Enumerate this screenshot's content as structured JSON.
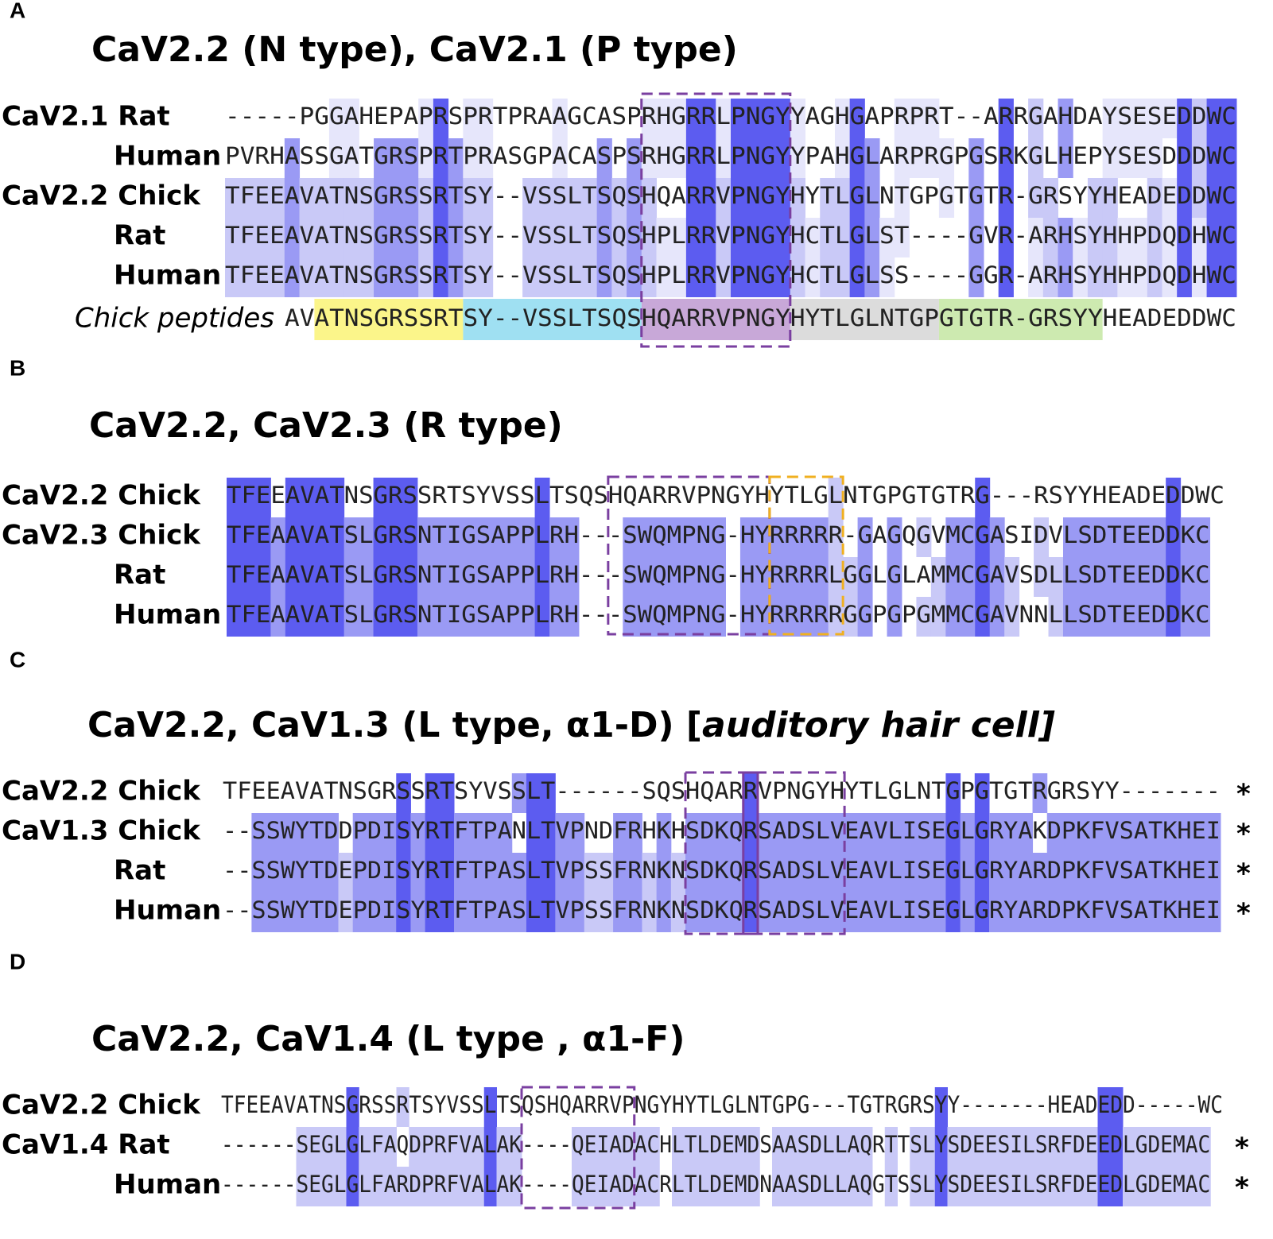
{
  "panels": [
    {
      "letter": "A",
      "title": "CaV2.2 (N type), CaV2.1 (P type)",
      "rows": [
        {
          "label": "CaV2.1 Rat",
          "sequence": "-----PGGAHEPAPRSPRTPRAAGCASPRHGRRLPNGYYAGHGAPRPRT--ARRGAHDAYSESEDDWC"
        },
        {
          "label": "Human",
          "sequence": "PVRHASSGATGRSPRTPRASGPACASPSRHGRRLPNGYYPAHGLARPRGPGSRKGLHEPYSESDDDWC"
        },
        {
          "label": "CaV2.2 Chick",
          "sequence": "TFEEAVATNSGRSSRTSY--VSSLTSQSHQARRVPNGYHYTLGLNTGPGTGTR-GRSYYHEADEDDWC"
        },
        {
          "label": "Rat",
          "sequence": "TFEEAVATNSGRSSRTSY--VSSLTSQSHPLRRVPNGYHCTLGLST----GVR-ARHSYHHPDQDHWC"
        },
        {
          "label": "Human",
          "sequence": "TFEEAVATNSGRSSRTSY--VSSLTSQSHPLRRVPNGYHCTLGLSS----GGR-ARHSYHHPDQDHWC"
        }
      ],
      "peptides": {
        "label": "Chick peptides",
        "segments": [
          {
            "text": "AV"
          },
          {
            "text": "ATNSGRSSRT",
            "color": "#fbf58a"
          },
          {
            "text": "SY--VSSLTSQS",
            "color": "#9fe0f2"
          },
          {
            "text": "HQARRVPNGY",
            "color": "#c8a8d8"
          },
          {
            "text": "HYTLGLNTGP",
            "color": "#dcdcdc"
          },
          {
            "text": "GTGTR-GRSYY",
            "color": "#cdeab0"
          },
          {
            "text": "HEADEDDWC"
          }
        ]
      }
    },
    {
      "letter": "B",
      "title": "CaV2.2, CaV2.3 (R type)",
      "rows": [
        {
          "label": "CaV2.2 Chick",
          "sequence": "TFEEAVATNSGRSSRTSYVSSLTSQSHQARRVPNGYHYTLGLNTGPGTGTRG---RSYYHEADEDDWC"
        },
        {
          "label": "CaV2.3 Chick",
          "sequence": "TFEAAVATSLGRSNTIGSAPPLRH---SWQMPNG-HYRRRRR-GAGQGVMCGASIDVLSDTEEDDKC"
        },
        {
          "label": "Rat",
          "sequence": "TFEAAVATSLGRSNTIGSAPPLRH---SWQMPNG-HYRRRRLGGLGLAMMCGAVSDLLSDTEEDDKC"
        },
        {
          "label": "Human",
          "sequence": "TFEAAVATSLGRSNTIGSAPPLRH---SWQMPNG-HYRRRRRGGPGPGMMCGAVNNLLSDTEEDDKC"
        }
      ]
    },
    {
      "letter": "C",
      "title": "CaV2.2, CaV1.3 (L type, α1-D) [",
      "title_italic": "auditory hair cell]",
      "rows": [
        {
          "label": "CaV2.2 Chick",
          "sequence": "TFEEAVATNSGRSSRTSYVSSLT------SQSHQARRVPNGYHYTLGLNTGPGTGTRGRSYY-------",
          "end": "*"
        },
        {
          "label": "CaV1.3 Chick",
          "sequence": "--SSWYTDDPDISYRTFTPANLTVPNDFRHKHSDKQRSADSLVEAVLISEGLGRYAKDPKFVSATKHEI",
          "end": "*"
        },
        {
          "label": "Rat",
          "sequence": "--SSWYTDEPDISYRTFTPASLTVPSSFRNKNSDKQRSADSLVEAVLISEGLGRYARDPKFVSATKHEI",
          "end": "*"
        },
        {
          "label": "Human",
          "sequence": "--SSWYTDEPDISYRTFTPASLTVPSSFRNKNSDKQRSADSLVEAVLISEGLGRYARDPKFVSATKHEI",
          "end": "*"
        }
      ]
    },
    {
      "letter": "D",
      "title": "CaV2.2, CaV1.4 (L type , α1-F)",
      "rows": [
        {
          "label": "CaV2.2 Chick",
          "sequence": "TFEEAVATNSGRSSRTSYVSSLTSQSHQARRVPNGYHYTLGLNTGPG---TGTRGRSYY-------HEADEDD-----WC"
        },
        {
          "label": "CaV1.4 Rat",
          "sequence": "------SEGLGLFAQDPRFVALAK----QEIADACHLTLDEMDSAASDLLAQRTTSLYSDEESILSRFDEEDLGDEMAC",
          "end": "*"
        },
        {
          "label": "Human",
          "sequence": "------SEGLGLFARDPRFVALAK----QEIADACRLTLDEMDNAASDLLAQGTSSLYSDEESILSRFDEEDLGDEMAC",
          "end": "*"
        }
      ]
    }
  ]
}
